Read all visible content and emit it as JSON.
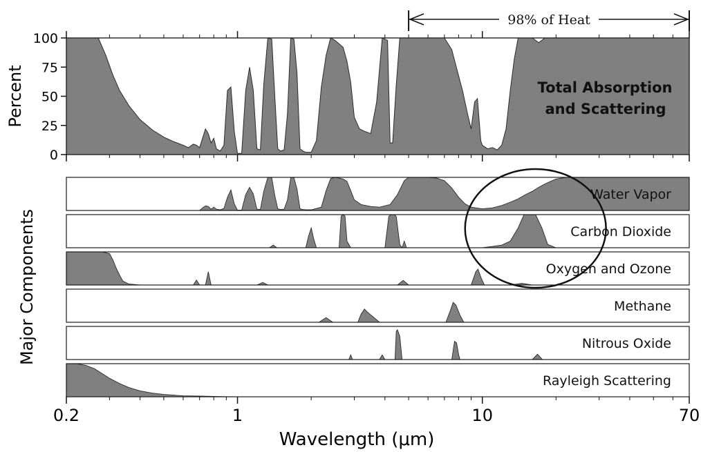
{
  "chart_data": {
    "type": "area",
    "xlabel": "Wavelength (μm)",
    "x_scale": "log",
    "xlim": [
      0.2,
      70
    ],
    "x_ticks": [
      0.2,
      1,
      10,
      70
    ],
    "x_tick_labels": [
      "0.2",
      "1",
      "10",
      "70"
    ],
    "fill_color": "#808080",
    "line_color": "#2a2a2a",
    "heat_annotation": {
      "label": "98% of Heat",
      "x_range": [
        5,
        70
      ]
    },
    "circle_annotation": {
      "x_range": [
        8.5,
        32
      ]
    },
    "top_panel": {
      "ylabel": "Percent",
      "ylim": [
        0,
        100
      ],
      "y_ticks": [
        0,
        25,
        50,
        75,
        100
      ],
      "y_tick_labels": [
        "0",
        "25",
        "50",
        "75",
        "100"
      ],
      "label_lines": [
        "Total Absorption",
        "and Scattering"
      ],
      "series": [
        {
          "x": [
            0.2,
            0.22,
            0.24,
            0.26,
            0.27,
            0.29,
            0.31,
            0.33,
            0.36,
            0.4,
            0.45,
            0.5,
            0.55,
            0.6,
            0.63,
            0.66,
            0.68,
            0.7,
            0.72,
            0.74,
            0.76,
            0.78,
            0.8,
            0.82,
            0.85,
            0.88,
            0.91,
            0.94,
            0.97,
            1.0,
            1.04,
            1.08,
            1.12,
            1.16,
            1.2,
            1.24,
            1.28,
            1.33,
            1.38,
            1.42,
            1.46,
            1.5,
            1.55,
            1.6,
            1.65,
            1.7,
            1.75,
            1.8,
            1.85,
            1.9,
            1.95,
            2.0,
            2.1,
            2.2,
            2.3,
            2.4,
            2.5,
            2.6,
            2.7,
            2.8,
            2.9,
            3.0,
            3.15,
            3.3,
            3.5,
            3.7,
            3.9,
            4.1,
            4.2,
            4.3,
            4.45,
            4.6,
            4.75,
            4.9,
            5.1,
            5.3,
            5.6,
            6.0,
            6.5,
            7.0,
            7.5,
            7.9,
            8.3,
            8.7,
            9.0,
            9.3,
            9.55,
            9.7,
            9.85,
            10.0,
            10.5,
            11.0,
            11.5,
            12.0,
            12.5,
            13.0,
            13.5,
            14.0,
            15.0,
            16.0,
            17.0,
            18.0,
            20.0,
            22.0,
            25.0,
            30.0,
            40.0,
            55.0,
            70.0
          ],
          "y": [
            100,
            100,
            100,
            100,
            100,
            85,
            68,
            55,
            42,
            30,
            21,
            15,
            11,
            8,
            6,
            9,
            8,
            6,
            14,
            22,
            18,
            10,
            14,
            5,
            3,
            8,
            55,
            58,
            20,
            1,
            1,
            55,
            75,
            55,
            5,
            4,
            60,
            100,
            99,
            50,
            5,
            3,
            4,
            35,
            100,
            99,
            70,
            5,
            3,
            2,
            2,
            2,
            12,
            58,
            85,
            100,
            98,
            95,
            92,
            80,
            62,
            32,
            22,
            20,
            18,
            45,
            100,
            98,
            10,
            10,
            60,
            100,
            100,
            100,
            100,
            100,
            100,
            100,
            100,
            100,
            90,
            72,
            55,
            35,
            22,
            45,
            48,
            30,
            12,
            8,
            5,
            6,
            4,
            8,
            22,
            55,
            82,
            100,
            100,
            100,
            96,
            100,
            100,
            100,
            100,
            100,
            100,
            100,
            100
          ]
        }
      ]
    },
    "component_panels": {
      "group_label": "Major Components",
      "ylim": [
        0,
        100
      ],
      "panels": [
        {
          "name": "Water Vapor",
          "x": [
            0.2,
            0.7,
            0.72,
            0.74,
            0.76,
            0.78,
            0.8,
            0.82,
            0.85,
            0.88,
            0.91,
            0.94,
            0.97,
            1.0,
            1.04,
            1.08,
            1.12,
            1.16,
            1.2,
            1.24,
            1.28,
            1.33,
            1.38,
            1.42,
            1.46,
            1.5,
            1.55,
            1.6,
            1.65,
            1.7,
            1.75,
            1.8,
            1.85,
            1.9,
            2.0,
            2.2,
            2.3,
            2.4,
            2.5,
            2.6,
            2.7,
            2.8,
            2.9,
            3.0,
            3.2,
            3.5,
            3.8,
            4.2,
            4.5,
            4.8,
            5.0,
            5.3,
            5.6,
            6.0,
            6.5,
            7.0,
            7.5,
            8.0,
            8.5,
            9.0,
            10.0,
            11.0,
            12.0,
            13.0,
            14.0,
            15.0,
            16.0,
            17.0,
            18.0,
            19.0,
            20.0,
            22.0,
            25.0,
            30.0,
            40.0,
            55.0,
            70.0
          ],
          "y": [
            0,
            0,
            8,
            14,
            12,
            4,
            10,
            4,
            2,
            6,
            40,
            62,
            20,
            1,
            1,
            48,
            70,
            50,
            4,
            3,
            58,
            100,
            99,
            45,
            5,
            3,
            4,
            32,
            100,
            99,
            65,
            5,
            3,
            2,
            2,
            10,
            60,
            96,
            100,
            98,
            95,
            88,
            60,
            32,
            18,
            12,
            10,
            18,
            48,
            90,
            100,
            100,
            100,
            100,
            98,
            90,
            68,
            40,
            20,
            10,
            5,
            8,
            15,
            25,
            35,
            48,
            58,
            70,
            80,
            88,
            95,
            100,
            100,
            100,
            100,
            100,
            100
          ]
        },
        {
          "name": "Carbon Dioxide",
          "x": [
            0.2,
            1.35,
            1.4,
            1.45,
            1.55,
            1.9,
            1.95,
            2.0,
            2.05,
            2.1,
            2.6,
            2.65,
            2.7,
            2.75,
            2.8,
            2.9,
            4.0,
            4.15,
            4.25,
            4.35,
            4.45,
            4.6,
            4.7,
            4.8,
            4.9,
            5.0,
            10.0,
            11.0,
            12.0,
            13.0,
            14.0,
            14.8,
            15.5,
            16.5,
            17.5,
            18.5,
            20.0,
            70.0
          ],
          "y": [
            0,
            0,
            8,
            0,
            0,
            0,
            35,
            60,
            25,
            0,
            0,
            95,
            100,
            95,
            20,
            0,
            0,
            95,
            100,
            100,
            95,
            10,
            0,
            20,
            0,
            0,
            0,
            4,
            8,
            20,
            60,
            100,
            100,
            100,
            60,
            10,
            0,
            0
          ]
        },
        {
          "name": "Oxygen and Ozone",
          "x": [
            0.2,
            0.26,
            0.28,
            0.3,
            0.31,
            0.32,
            0.33,
            0.34,
            0.36,
            0.4,
            0.66,
            0.68,
            0.7,
            0.74,
            0.76,
            0.78,
            1.2,
            1.27,
            1.33,
            4.5,
            4.75,
            5.0,
            9.0,
            9.4,
            9.6,
            9.9,
            10.2,
            13.0,
            14.5,
            16.0,
            70.0
          ],
          "y": [
            100,
            100,
            100,
            95,
            75,
            50,
            30,
            12,
            3,
            0,
            0,
            15,
            0,
            0,
            40,
            0,
            0,
            8,
            0,
            0,
            14,
            0,
            0,
            40,
            48,
            20,
            0,
            0,
            5,
            0,
            0
          ]
        },
        {
          "name": "Methane",
          "x": [
            0.2,
            2.15,
            2.3,
            2.45,
            3.1,
            3.2,
            3.3,
            3.4,
            3.6,
            3.8,
            7.1,
            7.4,
            7.6,
            7.8,
            8.1,
            8.4,
            70.0
          ],
          "y": [
            0,
            0,
            14,
            0,
            0,
            25,
            40,
            30,
            15,
            0,
            0,
            35,
            60,
            52,
            22,
            0,
            0
          ]
        },
        {
          "name": "Nitrous Oxide",
          "x": [
            0.2,
            2.85,
            2.9,
            2.95,
            3.8,
            3.9,
            4.0,
            4.4,
            4.45,
            4.5,
            4.6,
            4.7,
            7.5,
            7.7,
            7.85,
            8.0,
            8.1,
            16.0,
            16.8,
            17.6,
            70.0
          ],
          "y": [
            0,
            0,
            14,
            0,
            0,
            14,
            0,
            0,
            85,
            90,
            70,
            0,
            0,
            55,
            50,
            15,
            0,
            0,
            16,
            0,
            0
          ]
        },
        {
          "name": "Rayleigh Scattering",
          "x": [
            0.2,
            0.22,
            0.24,
            0.26,
            0.28,
            0.3,
            0.33,
            0.36,
            0.4,
            0.45,
            0.5,
            0.55,
            0.6,
            0.7,
            0.8,
            0.9,
            1.0,
            70.0
          ],
          "y": [
            100,
            100,
            95,
            85,
            70,
            56,
            40,
            28,
            18,
            11,
            7,
            5,
            3,
            2,
            1,
            0.5,
            0,
            0
          ]
        }
      ]
    }
  }
}
